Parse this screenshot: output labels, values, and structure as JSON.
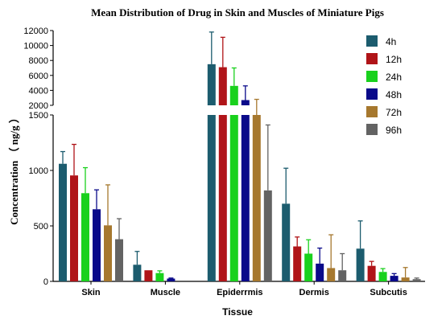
{
  "chart_data": {
    "type": "bar",
    "title": "Mean Distribution of Drug in Skin and Muscles of Miniature Pigs",
    "xlabel": "Tissue",
    "ylabel": "Concentration （ ng/g ）",
    "categories": [
      "Skin",
      "Muscle",
      "Epiderrmis",
      "Dermis",
      "Subcutis"
    ],
    "y_axis": {
      "broken": true,
      "lower_range": [
        0,
        1500
      ],
      "lower_ticks": [
        "0",
        "500",
        "1000",
        "1500"
      ],
      "upper_range": [
        2000,
        12000
      ],
      "upper_ticks": [
        "2000",
        "4000",
        "6000",
        "8000",
        "10000",
        "12000"
      ]
    },
    "legend_position": "top-right",
    "series": [
      {
        "name": "4h",
        "color": "#1c5c6e",
        "values": [
          1060,
          150,
          7500,
          700,
          295
        ],
        "errors": [
          110,
          120,
          4300,
          320,
          250
        ]
      },
      {
        "name": "12h",
        "color": "#b01418",
        "values": [
          955,
          100,
          7100,
          315,
          140
        ],
        "errors": [
          280,
          0,
          4000,
          85,
          40
        ]
      },
      {
        "name": "24h",
        "color": "#19d11d",
        "values": [
          795,
          75,
          4600,
          250,
          85
        ],
        "errors": [
          230,
          20,
          2400,
          125,
          30
        ]
      },
      {
        "name": "48h",
        "color": "#0a0a8a",
        "values": [
          650,
          25,
          2700,
          160,
          50
        ],
        "errors": [
          175,
          5,
          1900,
          140,
          20
        ]
      },
      {
        "name": "72h",
        "color": "#a6782e",
        "values": [
          505,
          0,
          1500,
          120,
          35
        ],
        "errors": [
          365,
          0,
          1300,
          300,
          90
        ]
      },
      {
        "name": "96h",
        "color": "#636363",
        "values": [
          380,
          0,
          820,
          100,
          20
        ],
        "errors": [
          185,
          0,
          590,
          150,
          10
        ]
      }
    ]
  }
}
